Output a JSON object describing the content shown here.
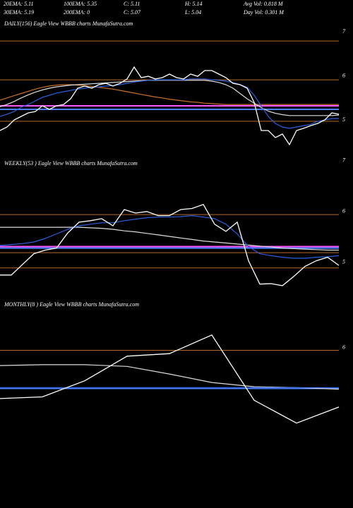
{
  "header": {
    "rows": [
      [
        "20EMA: 5.11",
        "100EMA: 5.35",
        "C: 5.11",
        "H: 5.14",
        "Avg Vol: 0.818  M"
      ],
      [
        "30EMA: 5.19",
        "200EMA: 0",
        "C: 5.07",
        "L: 5.04",
        "Day Vol: 0.301  M"
      ]
    ]
  },
  "chart_data": [
    {
      "type": "line",
      "title": "DAILY(156) Eagle  View  WBBB charts MunafaSutra.com",
      "categories": [
        null,
        null,
        null,
        null,
        null,
        null,
        null,
        null,
        null,
        null,
        null,
        null,
        null,
        null,
        null,
        null,
        null,
        null,
        null,
        null,
        null,
        null,
        null,
        null,
        null,
        null,
        null,
        null,
        null,
        null,
        null,
        null,
        null,
        null,
        null,
        null,
        null,
        null,
        null,
        null,
        null,
        null,
        null,
        null,
        null,
        null,
        null,
        null,
        null
      ],
      "ylim": [
        4.2,
        7.24
      ],
      "yticks": [
        7,
        6,
        5
      ],
      "levels": [
        {
          "value": 6.79,
          "color": "#b8682a"
        },
        {
          "value": 5.91,
          "color": "#b8682a"
        },
        {
          "value": 4.97,
          "color": "#b8682a"
        },
        {
          "value": 5.32,
          "color": "#ff55ff"
        },
        {
          "value": 5.24,
          "color": "#4a7fff"
        }
      ],
      "series": [
        {
          "color": "#c8702a",
          "values": [
            5.45,
            5.5,
            5.55,
            5.6,
            5.65,
            5.7,
            5.74,
            5.77,
            5.79,
            5.8,
            5.8,
            5.79,
            5.78,
            5.76,
            5.74,
            5.72,
            5.7,
            5.67,
            5.64,
            5.61,
            5.58,
            5.55,
            5.52,
            5.5,
            5.47,
            5.45,
            5.43,
            5.41,
            5.4,
            5.38,
            5.37,
            5.36,
            5.35,
            5.35,
            5.35,
            5.35,
            5.35,
            5.35,
            5.35,
            5.35,
            5.35,
            5.35,
            5.35,
            5.35,
            5.35,
            5.35,
            5.35,
            5.35,
            5.35
          ]
        },
        {
          "color": "#dddddd",
          "values": [
            5.3,
            5.35,
            5.42,
            5.5,
            5.57,
            5.63,
            5.68,
            5.72,
            5.75,
            5.77,
            5.79,
            5.8,
            5.81,
            5.82,
            5.83,
            5.84,
            5.85,
            5.86,
            5.87,
            5.88,
            5.89,
            5.9,
            5.9,
            5.9,
            5.9,
            5.9,
            5.9,
            5.9,
            5.9,
            5.9,
            5.88,
            5.85,
            5.8,
            5.72,
            5.6,
            5.48,
            5.38,
            5.28,
            5.2,
            5.15,
            5.12,
            5.1,
            5.1,
            5.1,
            5.1,
            5.1,
            5.1,
            5.1,
            5.11
          ]
        },
        {
          "color": "#2b5fe0",
          "values": [
            5.08,
            5.13,
            5.19,
            5.29,
            5.35,
            5.43,
            5.51,
            5.56,
            5.61,
            5.64,
            5.67,
            5.7,
            5.72,
            5.74,
            5.75,
            5.77,
            5.78,
            5.8,
            5.83,
            5.86,
            5.88,
            5.9,
            5.91,
            5.91,
            5.91,
            5.91,
            5.91,
            5.93,
            5.93,
            5.93,
            5.91,
            5.9,
            5.88,
            5.85,
            5.8,
            5.74,
            5.56,
            5.32,
            5.08,
            4.92,
            4.84,
            4.81,
            4.84,
            4.87,
            4.9,
            4.97,
            5.0,
            5.03,
            5.03
          ]
        },
        {
          "color": "#ffffff",
          "values": [
            4.76,
            4.84,
            5.0,
            5.08,
            5.16,
            5.19,
            5.32,
            5.24,
            5.32,
            5.35,
            5.48,
            5.72,
            5.77,
            5.72,
            5.8,
            5.83,
            5.77,
            5.83,
            5.93,
            6.2,
            5.96,
            5.99,
            5.93,
            5.96,
            6.04,
            5.96,
            5.93,
            6.04,
            5.99,
            6.12,
            6.12,
            6.04,
            5.96,
            5.83,
            5.8,
            5.72,
            5.4,
            4.76,
            4.76,
            4.6,
            4.68,
            4.44,
            4.76,
            4.81,
            4.87,
            4.92,
            5.0,
            5.16,
            5.13
          ]
        }
      ]
    },
    {
      "type": "line",
      "title": "WEEKLY(53 ) Eagle  View  WBBB charts MunafaSutra.com",
      "categories": [
        null,
        null,
        null,
        null,
        null,
        null,
        null,
        null,
        null,
        null,
        null,
        null,
        null,
        null,
        null,
        null,
        null,
        null,
        null,
        null,
        null,
        null,
        null,
        null,
        null,
        null,
        null,
        null,
        null,
        null,
        null
      ],
      "ylim": [
        4.33,
        7.04
      ],
      "yticks": [
        7,
        6,
        5
      ],
      "levels": [
        {
          "value": 5.94,
          "color": "#b8682a"
        },
        {
          "value": 5.19,
          "color": "#b8682a"
        },
        {
          "value": 4.89,
          "color": "#b8682a"
        },
        {
          "value": 5.31,
          "color": "#ff55ff"
        },
        {
          "value": 5.28,
          "color": "#4a7fff"
        }
      ],
      "series": [
        {
          "color": "#dddddd",
          "values": [
            5.69,
            5.69,
            5.69,
            5.69,
            5.69,
            5.69,
            5.69,
            5.69,
            5.68,
            5.67,
            5.65,
            5.62,
            5.6,
            5.57,
            5.54,
            5.51,
            5.48,
            5.45,
            5.42,
            5.4,
            5.38,
            5.36,
            5.34,
            5.32,
            5.3,
            5.28,
            5.27,
            5.26,
            5.25,
            5.24,
            5.24
          ]
        },
        {
          "color": "#2b5fe0",
          "values": [
            5.33,
            5.35,
            5.37,
            5.4,
            5.47,
            5.56,
            5.65,
            5.72,
            5.75,
            5.78,
            5.78,
            5.82,
            5.85,
            5.88,
            5.89,
            5.89,
            5.9,
            5.92,
            5.89,
            5.86,
            5.75,
            5.56,
            5.31,
            5.17,
            5.13,
            5.1,
            5.08,
            5.08,
            5.1,
            5.11,
            5.13
          ]
        },
        {
          "color": "#ffffff",
          "values": [
            4.75,
            4.75,
            4.96,
            5.17,
            5.24,
            5.28,
            5.58,
            5.79,
            5.82,
            5.86,
            5.72,
            6.04,
            5.97,
            6.0,
            5.92,
            5.92,
            6.04,
            6.06,
            6.14,
            5.75,
            5.61,
            5.79,
            5.03,
            4.57,
            4.58,
            4.54,
            4.72,
            4.92,
            5.03,
            5.1,
            4.94
          ]
        }
      ]
    },
    {
      "type": "line",
      "title": "MONTHLY(8 ) Eagle  View  WBBB charts MunafaSutra.com",
      "categories": [
        null,
        null,
        null,
        null,
        null,
        null,
        null,
        null,
        null
      ],
      "ylim": [
        4.15,
        6.44
      ],
      "yticks": [
        6
      ],
      "levels": [
        {
          "value": 5.97,
          "color": "#b8682a"
        },
        {
          "value": 5.52,
          "color": "#4a7fff"
        }
      ],
      "series": [
        {
          "color": "#dddddd",
          "values": [
            5.79,
            5.8,
            5.8,
            5.78,
            5.69,
            5.59,
            5.54,
            5.53,
            5.51
          ]
        },
        {
          "color": "#2b5fe0",
          "values": [
            5.53,
            5.53,
            5.53,
            5.53,
            5.53,
            5.53,
            5.53,
            5.53,
            5.53
          ]
        },
        {
          "color": "#ffffff",
          "values": [
            5.4,
            5.42,
            5.61,
            5.9,
            5.93,
            6.15,
            5.38,
            5.11,
            5.3
          ]
        }
      ]
    }
  ]
}
